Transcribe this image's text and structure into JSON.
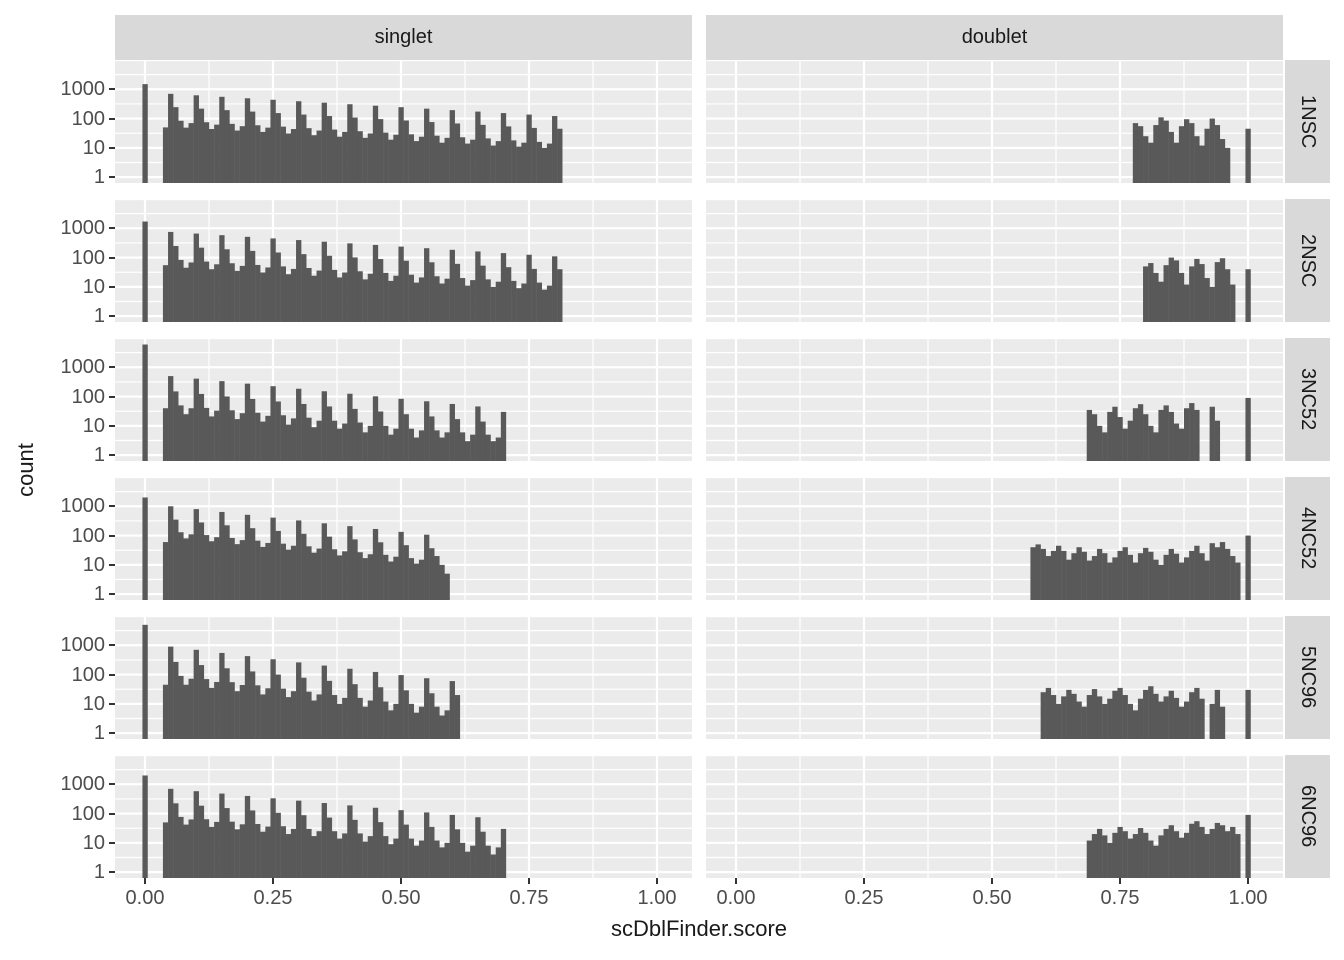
{
  "chart_data": {
    "type": "bar",
    "subtype": "faceted-histogram",
    "xlabel": "scDblFinder.score",
    "ylabel": "count",
    "x_ticks": [
      0.0,
      0.25,
      0.5,
      0.75,
      1.0
    ],
    "x_tick_labels": [
      "0.00",
      "0.25",
      "0.50",
      "0.75",
      "1.00"
    ],
    "y_scale": "log10",
    "y_ticks": [
      1000,
      100,
      10,
      1
    ],
    "y_tick_labels": [
      "1000",
      "100",
      "10",
      "1"
    ],
    "ylim_log10": [
      -0.2,
      4.0
    ],
    "grid": "on",
    "legend": "none",
    "col_facets": [
      "singlet",
      "doublet"
    ],
    "row_facets": [
      "1NSC",
      "2NSC",
      "3NC52",
      "4NC52",
      "5NC96",
      "6NC96"
    ],
    "bin_width": 0.01,
    "colors": {
      "bar": "#595959",
      "panel_bg": "#EBEBEB",
      "strip_bg": "#D9D9D9",
      "grid_major": "#FFFFFF",
      "grid_minor": "#F5F5F5",
      "tick": "#333333",
      "axis_text": "#4D4D4D",
      "title_text": "#1A1A1A"
    },
    "panels": [
      {
        "row": "1NSC",
        "col": "singlet",
        "start": 0.0,
        "counts": [
          1500,
          0,
          0,
          0,
          50,
          700,
          245,
          84,
          49,
          70,
          623,
          218,
          75,
          44,
          62,
          554,
          194,
          66,
          39,
          55,
          493,
          173,
          59,
          35,
          49,
          439,
          154,
          53,
          31,
          44,
          391,
          137,
          47,
          27,
          39,
          348,
          122,
          42,
          24,
          35,
          309,
          108,
          37,
          22,
          31,
          275,
          96,
          33,
          19,
          28,
          245,
          86,
          29,
          17,
          24,
          218,
          76,
          26,
          15,
          22,
          194,
          68,
          23,
          14,
          19,
          173,
          61,
          21,
          12,
          17,
          154,
          54,
          18,
          11,
          15,
          137,
          48,
          16,
          10,
          14,
          122,
          45
        ]
      },
      {
        "row": "1NSC",
        "col": "doublet",
        "start": 0.78,
        "counts": [
          70,
          55,
          25,
          15,
          60,
          110,
          85,
          35,
          15,
          55,
          95,
          70,
          25,
          12,
          45,
          100,
          60,
          20,
          10,
          0,
          0,
          0,
          45
        ]
      },
      {
        "row": "2NSC",
        "col": "singlet",
        "start": 0.0,
        "counts": [
          1700,
          0,
          0,
          0,
          55,
          750,
          248,
          83,
          45,
          68,
          660,
          218,
          73,
          40,
          59,
          581,
          192,
          64,
          35,
          52,
          511,
          169,
          56,
          31,
          46,
          450,
          149,
          50,
          27,
          41,
          396,
          131,
          44,
          24,
          36,
          348,
          115,
          38,
          21,
          31,
          306,
          101,
          34,
          18,
          28,
          270,
          89,
          30,
          16,
          24,
          237,
          78,
          26,
          14,
          21,
          209,
          69,
          23,
          13,
          19,
          184,
          61,
          20,
          11,
          17,
          162,
          53,
          18,
          10,
          15,
          142,
          47,
          16,
          9,
          13,
          125,
          41,
          14,
          8,
          11,
          110,
          40
        ]
      },
      {
        "row": "2NSC",
        "col": "doublet",
        "start": 0.8,
        "counts": [
          50,
          65,
          30,
          15,
          55,
          100,
          80,
          30,
          12,
          50,
          90,
          60,
          20,
          10,
          70,
          95,
          40,
          12,
          0,
          0,
          40
        ]
      },
      {
        "row": "3NC52",
        "col": "singlet",
        "start": 0.0,
        "counts": [
          6000,
          0,
          0,
          0,
          40,
          500,
          150,
          50,
          25,
          40,
          410,
          123,
          41,
          21,
          33,
          336,
          101,
          34,
          17,
          27,
          276,
          83,
          28,
          14,
          22,
          226,
          68,
          23,
          11,
          18,
          185,
          56,
          19,
          9,
          15,
          152,
          46,
          15,
          8,
          12,
          125,
          38,
          13,
          6,
          10,
          102,
          31,
          10,
          5,
          8,
          84,
          25,
          8,
          4,
          7,
          69,
          21,
          7,
          4,
          6,
          56,
          17,
          6,
          3,
          5,
          46,
          14,
          5,
          3,
          4,
          30
        ]
      },
      {
        "row": "3NC52",
        "col": "doublet",
        "start": 0.69,
        "counts": [
          35,
          25,
          10,
          6,
          30,
          45,
          20,
          8,
          15,
          40,
          55,
          25,
          10,
          6,
          35,
          50,
          30,
          12,
          8,
          40,
          60,
          35,
          0,
          0,
          45,
          15,
          0,
          0,
          0,
          0,
          0,
          90
        ]
      },
      {
        "row": "4NC52",
        "col": "singlet",
        "start": 0.0,
        "counts": [
          2000,
          0,
          0,
          0,
          60,
          1000,
          350,
          130,
          80,
          110,
          800,
          280,
          104,
          64,
          88,
          640,
          224,
          83,
          51,
          70,
          512,
          179,
          67,
          41,
          56,
          410,
          144,
          53,
          33,
          45,
          328,
          115,
          43,
          26,
          36,
          262,
          92,
          34,
          21,
          29,
          210,
          74,
          27,
          17,
          23,
          168,
          59,
          22,
          13,
          19,
          134,
          47,
          17,
          11,
          15,
          107,
          37,
          20,
          10,
          5
        ]
      },
      {
        "row": "4NC52",
        "col": "doublet",
        "start": 0.58,
        "counts": [
          40,
          50,
          35,
          20,
          30,
          45,
          30,
          15,
          25,
          40,
          28,
          14,
          20,
          35,
          25,
          12,
          18,
          30,
          40,
          22,
          12,
          25,
          38,
          28,
          15,
          10,
          22,
          35,
          24,
          12,
          18,
          30,
          45,
          25,
          14,
          55,
          40,
          60,
          35,
          20,
          12,
          0,
          100
        ]
      },
      {
        "row": "5NC96",
        "col": "singlet",
        "start": 0.0,
        "counts": [
          5000,
          0,
          0,
          0,
          45,
          900,
          270,
          90,
          45,
          72,
          702,
          211,
          70,
          35,
          56,
          548,
          164,
          55,
          27,
          44,
          427,
          128,
          43,
          21,
          34,
          333,
          100,
          33,
          17,
          27,
          260,
          78,
          26,
          13,
          21,
          203,
          61,
          20,
          10,
          16,
          158,
          47,
          16,
          8,
          13,
          123,
          37,
          12,
          6,
          10,
          96,
          29,
          10,
          5,
          8,
          75,
          23,
          8,
          4,
          6,
          60,
          20
        ]
      },
      {
        "row": "5NC96",
        "col": "doublet",
        "start": 0.6,
        "counts": [
          25,
          35,
          20,
          10,
          18,
          30,
          22,
          12,
          8,
          20,
          32,
          18,
          10,
          15,
          28,
          35,
          20,
          10,
          6,
          15,
          30,
          40,
          22,
          12,
          18,
          28,
          16,
          8,
          12,
          25,
          35,
          15,
          0,
          10,
          30,
          8,
          0,
          0,
          0,
          0,
          30
        ]
      },
      {
        "row": "6NC96",
        "col": "singlet",
        "start": 0.0,
        "counts": [
          2000,
          0,
          0,
          0,
          50,
          700,
          224,
          77,
          42,
          63,
          581,
          186,
          64,
          35,
          52,
          482,
          154,
          53,
          29,
          43,
          400,
          128,
          44,
          24,
          36,
          332,
          106,
          37,
          20,
          30,
          276,
          88,
          30,
          17,
          25,
          229,
          73,
          25,
          14,
          21,
          190,
          61,
          21,
          11,
          17,
          158,
          51,
          17,
          9,
          14,
          131,
          42,
          14,
          8,
          12,
          109,
          35,
          12,
          7,
          10,
          90,
          29,
          10,
          5,
          8,
          75,
          24,
          8,
          4,
          7,
          30
        ]
      },
      {
        "row": "6NC96",
        "col": "doublet",
        "start": 0.69,
        "counts": [
          12,
          20,
          30,
          18,
          10,
          22,
          35,
          25,
          14,
          20,
          32,
          22,
          12,
          8,
          18,
          30,
          40,
          25,
          15,
          22,
          45,
          55,
          35,
          20,
          30,
          48,
          40,
          25,
          35,
          20,
          0,
          90
        ]
      }
    ]
  }
}
